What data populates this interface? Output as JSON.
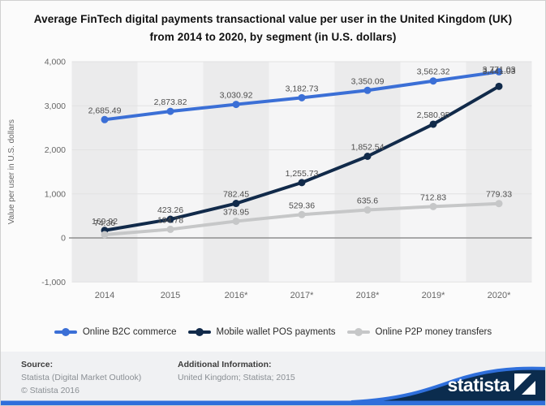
{
  "title": "Average FinTech digital payments transactional value per user in the United Kingdom (UK) from 2014 to 2020, by segment (in U.S. dollars)",
  "chart_data": {
    "type": "line",
    "title": "Average FinTech digital payments transactional value per user in the United Kingdom (UK) from 2014 to 2020, by segment (in U.S. dollars)",
    "xlabel": "",
    "ylabel": "Value per user in U.S. dollars",
    "ylim": [
      -1000,
      4000
    ],
    "ytick_step": 1000,
    "grid": true,
    "legend_position": "bottom",
    "categories": [
      "2014",
      "2015",
      "2016*",
      "2017*",
      "2018*",
      "2019*",
      "2020*"
    ],
    "series": [
      {
        "name": "Online B2C commerce",
        "color": "#3b6fd6",
        "values": [
          2685.49,
          2873.82,
          3030.92,
          3182.73,
          3350.09,
          3562.32,
          3771.03
        ]
      },
      {
        "name": "Mobile wallet POS payments",
        "color": "#112a4a",
        "values": [
          169.92,
          423.26,
          782.45,
          1255.73,
          1852.54,
          2580.95,
          3441.03
        ]
      },
      {
        "name": "Online P2P money transfers",
        "color": "#c6c7c8",
        "values": [
          74.36,
          194.78,
          378.95,
          529.36,
          635.6,
          712.83,
          779.33
        ]
      }
    ]
  },
  "footer": {
    "source_label": "Source:",
    "source_line1": "Statista (Digital Market Outlook)",
    "source_line2": "© Statista 2016",
    "additional_label": "Additional Information:",
    "additional_line": "United Kingdom; Statista; 2015"
  },
  "branding": {
    "wordmark": "statista"
  },
  "colors": {
    "accent_blue": "#2f6fdb",
    "brand_navy": "#0b2c4e",
    "band_dark": "#ebebec",
    "band_light": "#f5f5f6",
    "grid_line": "#e2e2e2",
    "zero_line": "#8f8f8f",
    "tick_text": "#666666",
    "label_text": "#4d4d4d"
  }
}
